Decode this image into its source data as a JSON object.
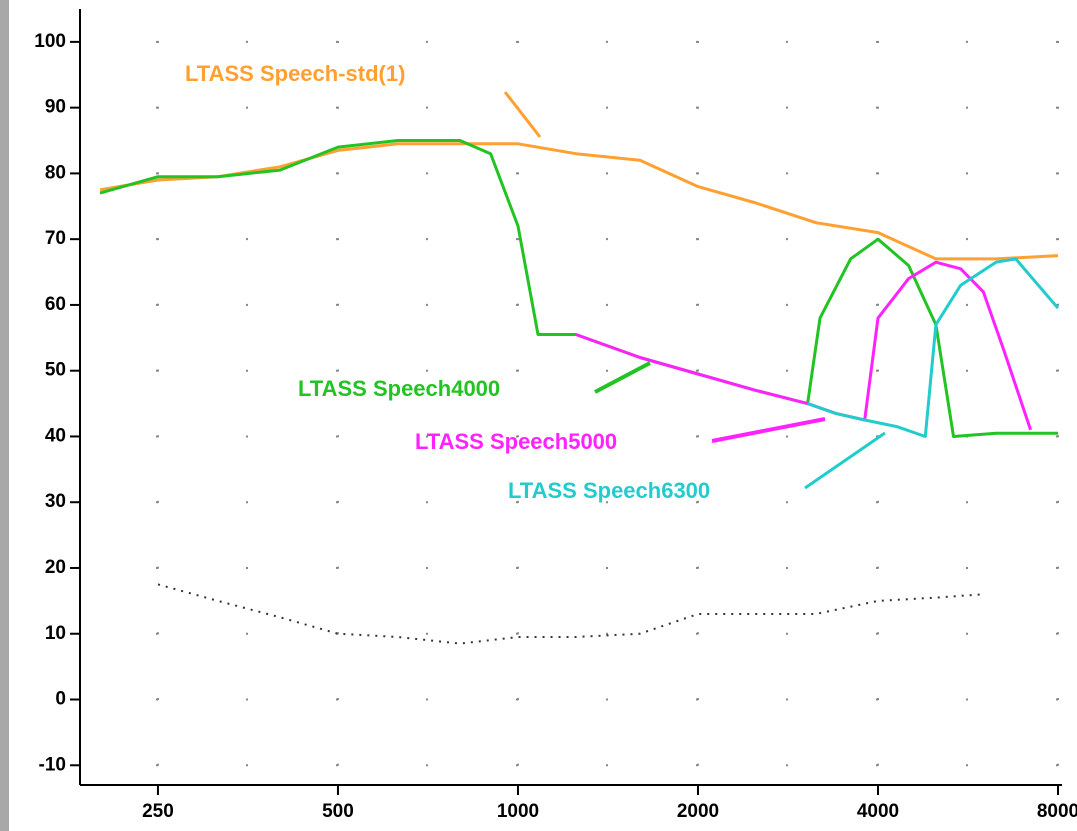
{
  "chart_data": {
    "type": "line",
    "xscale": "log",
    "xlim": [
      200,
      8000
    ],
    "xticks": [
      250,
      500,
      1000,
      2000,
      4000,
      8000
    ],
    "ylim": [
      -13,
      105
    ],
    "yticks": [
      -10,
      0,
      10,
      20,
      30,
      40,
      50,
      60,
      70,
      80,
      90,
      100
    ],
    "grid": true,
    "series": [
      {
        "name": "LTASS Speech-std(1)",
        "color": "#ffa030",
        "x": [
          200,
          250,
          315,
          400,
          500,
          630,
          800,
          1000,
          1250,
          1600,
          2000,
          2500,
          3150,
          4000,
          5000,
          6300,
          8000
        ],
        "values": [
          77.5,
          79,
          79.5,
          81,
          83.5,
          84.5,
          84.5,
          84.5,
          83,
          82,
          78,
          75.5,
          72.5,
          71,
          67,
          67,
          67.5
        ]
      },
      {
        "name": "LTASS Speech4000",
        "color": "#22c322",
        "x": [
          200,
          250,
          315,
          400,
          500,
          630,
          800,
          900,
          1000,
          1080,
          1250,
          1600,
          2000,
          2500,
          3050,
          3200,
          3600,
          4000,
          4500,
          5000,
          5350,
          6300,
          8000
        ],
        "values": [
          77,
          79.5,
          79.5,
          80.5,
          84,
          85,
          85,
          83,
          72,
          55.5,
          55.5,
          52,
          49.5,
          47,
          45,
          58,
          67,
          70,
          66,
          57,
          40,
          40.5,
          40.5
        ]
      },
      {
        "name": "LTASS Speech5000",
        "color": "#ff22ff",
        "x": [
          1250,
          1600,
          2000,
          2500,
          3050,
          3400,
          3800,
          4000,
          4500,
          5000,
          5500,
          6000,
          6500,
          7200
        ],
        "values": [
          55.5,
          52,
          49.5,
          47,
          45,
          43.5,
          42.5,
          58,
          64,
          66.5,
          65.5,
          62,
          53,
          41
        ]
      },
      {
        "name": "LTASS Speech6300",
        "color": "#22cccc",
        "x": [
          3050,
          3400,
          3800,
          4300,
          4800,
          5000,
          5500,
          6300,
          6800,
          8000
        ],
        "values": [
          45,
          43.5,
          42.5,
          41.5,
          40,
          57,
          63,
          66.5,
          67,
          59.5
        ]
      },
      {
        "color": "#333333",
        "dashed": true,
        "x": [
          250,
          315,
          400,
          500,
          630,
          800,
          1000,
          1250,
          1600,
          2000,
          2500,
          3150,
          4000,
          5000,
          6000
        ],
        "values": [
          17.5,
          15,
          12.5,
          10,
          9.5,
          8.5,
          9.5,
          9.5,
          10,
          13,
          13,
          13,
          15,
          15.5,
          16
        ]
      }
    ]
  }
}
